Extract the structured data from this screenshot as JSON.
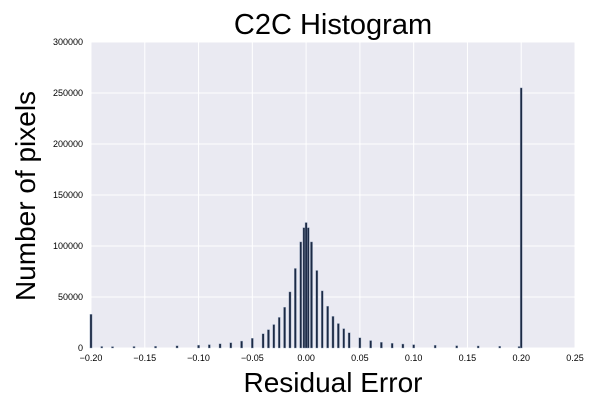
{
  "chart_data": {
    "type": "bar",
    "title": "C2C Histogram",
    "xlabel": "Residual Error",
    "ylabel": "Number of pixels",
    "xlim": [
      -0.2,
      0.25
    ],
    "ylim": [
      0,
      300000
    ],
    "x_ticks": [
      -0.2,
      -0.15,
      -0.1,
      -0.05,
      0.0,
      0.05,
      0.1,
      0.15,
      0.2,
      0.25
    ],
    "x_tick_labels": [
      "−0.20",
      "−0.15",
      "−0.10",
      "−0.05",
      "0.00",
      "0.05",
      "0.10",
      "0.15",
      "0.20",
      "0.25"
    ],
    "y_ticks": [
      0,
      50000,
      100000,
      150000,
      200000,
      250000,
      300000
    ],
    "y_tick_labels": [
      "0",
      "50000",
      "100000",
      "150000",
      "200000",
      "250000",
      "300000"
    ],
    "grid": true,
    "bin_width": 0.002,
    "x": [
      -0.2,
      -0.19,
      -0.18,
      -0.16,
      -0.14,
      -0.12,
      -0.1,
      -0.09,
      -0.08,
      -0.07,
      -0.06,
      -0.05,
      -0.04,
      -0.035,
      -0.03,
      -0.025,
      -0.02,
      -0.015,
      -0.01,
      -0.005,
      -0.002,
      0.0,
      0.002,
      0.005,
      0.01,
      0.015,
      0.02,
      0.025,
      0.03,
      0.035,
      0.04,
      0.05,
      0.06,
      0.07,
      0.08,
      0.09,
      0.1,
      0.12,
      0.14,
      0.16,
      0.18,
      0.198,
      0.2
    ],
    "values": [
      33000,
      1500,
      1400,
      1500,
      1700,
      2200,
      2800,
      3300,
      4100,
      5200,
      6800,
      9500,
      14000,
      18000,
      23000,
      30000,
      40000,
      55000,
      78000,
      104000,
      118000,
      123000,
      118000,
      104000,
      76000,
      56000,
      41000,
      31000,
      24000,
      19000,
      15000,
      10000,
      7300,
      5600,
      4600,
      3900,
      3300,
      2700,
      2300,
      2000,
      1700,
      1500,
      255000
    ],
    "colors": {
      "plot_background": "#eaeaf2",
      "grid": "#ffffff",
      "bar_fill": "#1c2a44",
      "bar_edge": "#9aa9c2",
      "text": "#000000"
    }
  }
}
